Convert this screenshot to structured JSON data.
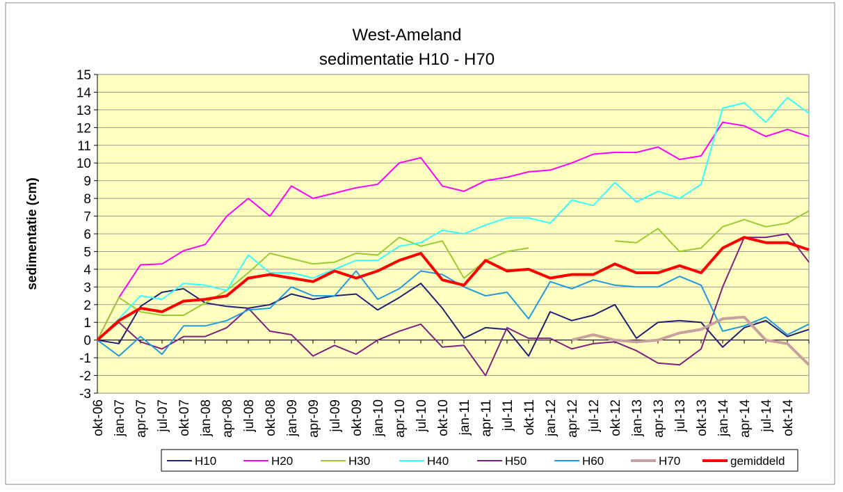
{
  "chart_data": {
    "type": "line",
    "title": "West-Ameland",
    "subtitle": "sedimentatie H10 - H70",
    "y_label": "sedimentatie (cm)",
    "categories": [
      "okt-06",
      "jan-07",
      "apr-07",
      "jul-07",
      "okt-07",
      "jan-08",
      "apr-08",
      "jul-08",
      "okt-08",
      "jan-09",
      "apr-09",
      "jul-09",
      "okt-09",
      "jan-10",
      "apr-10",
      "jul-10",
      "okt-10",
      "jan-11",
      "apr-11",
      "jul-11",
      "okt-11",
      "jan-12",
      "apr-12",
      "jul-12",
      "okt-12",
      "jan-13",
      "apr-13",
      "jul-13",
      "okt-13",
      "jan-14",
      "apr-14",
      "jul-14",
      "okt-14",
      null
    ],
    "ylim": [
      -3,
      15
    ],
    "yticks": [
      -3,
      -2,
      -1,
      0,
      1,
      2,
      3,
      4,
      5,
      6,
      7,
      8,
      9,
      10,
      11,
      12,
      13,
      14,
      15
    ],
    "grid": true,
    "series": [
      {
        "name": "H10",
        "color": "#1f1f78",
        "width": 2,
        "values": [
          0,
          -0.2,
          1.9,
          2.7,
          2.9,
          2.1,
          1.9,
          1.8,
          2.0,
          2.6,
          2.3,
          2.5,
          2.6,
          1.7,
          2.4,
          3.2,
          1.8,
          0.1,
          0.7,
          0.6,
          -0.9,
          1.6,
          1.1,
          1.4,
          2.0,
          0.1,
          1.0,
          1.1,
          1.0,
          -0.4,
          0.7,
          1.1,
          0.2,
          0.6
        ]
      },
      {
        "name": "H20",
        "color": "#ff00ff",
        "width": 2,
        "values": [
          0,
          2.4,
          4.25,
          4.3,
          5.05,
          5.4,
          7.0,
          8.0,
          7.0,
          8.7,
          8.0,
          8.3,
          8.6,
          8.8,
          10.0,
          10.3,
          8.7,
          8.4,
          9.0,
          9.2,
          9.5,
          9.6,
          10.0,
          10.5,
          10.6,
          10.6,
          10.9,
          10.2,
          10.4,
          12.3,
          12.1,
          11.5,
          11.9,
          11.5
        ]
      },
      {
        "name": "H30",
        "color": "#99cc33",
        "width": 2,
        "values": [
          0,
          2.4,
          1.6,
          1.4,
          1.4,
          2.1,
          2.8,
          3.8,
          4.9,
          4.6,
          4.3,
          4.4,
          4.9,
          4.8,
          5.8,
          5.3,
          5.6,
          3.5,
          4.5,
          5.0,
          5.2,
          null,
          null,
          null,
          5.6,
          5.5,
          6.3,
          5.0,
          5.2,
          6.4,
          6.8,
          6.4,
          6.6,
          7.3
        ]
      },
      {
        "name": "H40",
        "color": "#33ffff",
        "width": 2,
        "values": [
          0,
          1.2,
          2.5,
          2.3,
          3.2,
          3.1,
          2.8,
          4.8,
          3.8,
          3.8,
          3.5,
          4.0,
          4.5,
          4.5,
          5.3,
          5.5,
          6.2,
          6.0,
          6.5,
          6.9,
          6.9,
          6.6,
          7.9,
          7.6,
          8.9,
          7.8,
          8.4,
          8.0,
          8.8,
          13.1,
          13.4,
          12.3,
          13.7,
          12.8
        ]
      },
      {
        "name": "H50",
        "color": "#7f2080",
        "width": 2,
        "values": [
          0,
          1.0,
          -0.1,
          -0.5,
          0.2,
          0.2,
          0.7,
          1.8,
          0.5,
          0.3,
          -0.9,
          -0.3,
          -0.8,
          0.0,
          0.5,
          0.9,
          -0.4,
          -0.3,
          -2.0,
          0.7,
          0.1,
          0.1,
          -0.5,
          -0.2,
          -0.1,
          -0.6,
          -1.3,
          -1.4,
          -0.5,
          3.0,
          5.8,
          5.8,
          6.0,
          4.4
        ]
      },
      {
        "name": "H60",
        "color": "#1e9be0",
        "width": 2,
        "values": [
          0,
          -0.9,
          0.2,
          -0.8,
          0.8,
          0.8,
          1.1,
          1.7,
          1.8,
          3.0,
          2.5,
          2.5,
          3.9,
          2.3,
          2.9,
          3.9,
          3.7,
          3.0,
          2.5,
          2.7,
          1.2,
          3.3,
          2.9,
          3.4,
          3.1,
          3.0,
          3.0,
          3.6,
          3.1,
          0.5,
          0.8,
          1.3,
          0.3,
          0.9
        ]
      },
      {
        "name": "H70",
        "color": "#c8a0a0",
        "width": 4,
        "values": [
          null,
          null,
          null,
          null,
          null,
          null,
          null,
          null,
          null,
          null,
          null,
          null,
          null,
          null,
          null,
          null,
          null,
          null,
          null,
          null,
          null,
          null,
          0,
          0.3,
          0.0,
          -0.1,
          0.0,
          0.4,
          0.6,
          1.2,
          1.3,
          0.0,
          -0.2,
          -1.4
        ]
      },
      {
        "name": "gemiddeld",
        "color": "#ff0000",
        "width": 4,
        "values": [
          0,
          1.1,
          1.8,
          1.6,
          2.2,
          2.3,
          2.5,
          3.5,
          3.7,
          3.5,
          3.3,
          3.9,
          3.5,
          3.9,
          4.5,
          4.9,
          3.4,
          3.1,
          4.5,
          3.9,
          4.0,
          3.5,
          3.7,
          3.7,
          4.3,
          3.8,
          3.8,
          4.2,
          3.8,
          5.2,
          5.8,
          5.5,
          5.5,
          5.1
        ]
      }
    ]
  }
}
